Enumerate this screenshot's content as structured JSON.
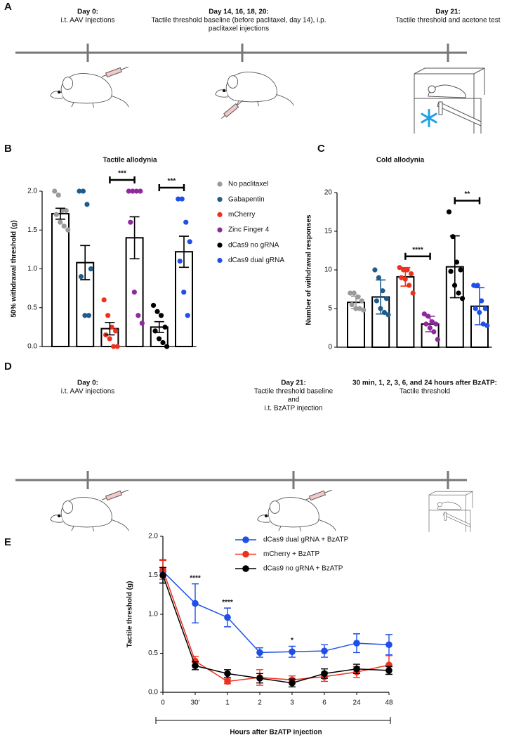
{
  "timeline_a": {
    "label": "A",
    "events": [
      {
        "title": "Day 0:",
        "lines": [
          "i.t. AAV Injections"
        ]
      },
      {
        "title": "Day 14, 16, 18, 20:",
        "lines": [
          "Tactile threshold baseline (before paclitaxel, day 14), i.p.",
          "paclitaxel injections"
        ]
      },
      {
        "title": "Day 21:",
        "lines": [
          "Tactile threshold and acetone test"
        ]
      }
    ]
  },
  "timeline_d": {
    "label": "D",
    "events": [
      {
        "title": "Day 0:",
        "lines": [
          "i.t. AAV injections"
        ]
      },
      {
        "title": "Day 21:",
        "lines": [
          "Tactile threshold baseline",
          "and",
          "i.t. BzATP injection"
        ]
      },
      {
        "title": "30 min, 1, 2, 3, 6, and 24 hours after BzATP:",
        "lines": [
          "Tactile threshold"
        ]
      }
    ]
  },
  "chart_data": [
    {
      "type": "bar",
      "panel_label": "B",
      "title": "Tactile allodynia",
      "y_label": "50% withdrawal threshold (g)",
      "ylim": [
        0,
        2
      ],
      "yticks": [
        {
          "value": 0,
          "label": "0.0"
        },
        {
          "value": 0.5,
          "label": "0.5"
        },
        {
          "value": 1,
          "label": "1.0"
        },
        {
          "value": 1.5,
          "label": "1.5"
        },
        {
          "value": 2,
          "label": "2.0"
        }
      ],
      "legend": "right",
      "errorbar_color": "#000000",
      "series": [
        {
          "name": "No paclitaxel",
          "color": "#9a9a9a",
          "values": [
            1.71
          ],
          "errors": [
            0.07
          ],
          "points": [
            2.0,
            1.95,
            1.75,
            1.75,
            1.7,
            1.6,
            1.55,
            1.5
          ]
        },
        {
          "name": "Gabapentin",
          "color": "#1f5c8c",
          "values": [
            1.08
          ],
          "errors": [
            0.22
          ],
          "points": [
            2.0,
            2.0,
            1.83,
            1.0,
            0.9,
            0.4,
            0.4
          ]
        },
        {
          "name": "mCherry",
          "color": "#f0301e",
          "values": [
            0.23
          ],
          "errors": [
            0.08
          ],
          "points": [
            0.6,
            0.4,
            0.25,
            0.2,
            0.15,
            0.1,
            0.0,
            0.0
          ]
        },
        {
          "name": "Zinc Finger 4",
          "color": "#8e2a9c",
          "values": [
            1.4
          ],
          "errors": [
            0.27
          ],
          "points": [
            2.0,
            2.0,
            2.0,
            2.0,
            1.6,
            0.7,
            0.4,
            0.3
          ]
        },
        {
          "name": "dCas9 no gRNA",
          "color": "#000000",
          "values": [
            0.25
          ],
          "errors": [
            0.07
          ],
          "points": [
            0.53,
            0.45,
            0.4,
            0.25,
            0.2,
            0.1,
            0.05,
            0.0
          ]
        },
        {
          "name": "dCas9 dual gRNA",
          "color": "#1f4fe8",
          "values": [
            1.22
          ],
          "errors": [
            0.2
          ],
          "points": [
            1.9,
            1.9,
            1.6,
            1.35,
            1.1,
            0.7,
            0.4
          ]
        }
      ],
      "comparisons": [
        {
          "label": "***",
          "groups": [
            2,
            3
          ]
        },
        {
          "label": "***",
          "groups": [
            4,
            5
          ]
        }
      ]
    },
    {
      "type": "bar",
      "panel_label": "C",
      "title": "Cold allodynia",
      "y_label": "Number of withdrawal responses",
      "ylim": [
        0,
        20
      ],
      "yticks": [
        0,
        5,
        10,
        15,
        20
      ],
      "legend": false,
      "series": [
        {
          "color": "#9a9a9a",
          "values": [
            5.8
          ],
          "errors": [
            0.8
          ],
          "points": [
            7,
            7,
            6.5,
            6,
            5.5,
            5,
            5,
            4.8
          ]
        },
        {
          "color": "#1f5c8c",
          "values": [
            6.5
          ],
          "errors": [
            2.2
          ],
          "points": [
            10,
            9,
            7.3,
            6.3,
            6,
            5,
            4.5,
            4.2
          ]
        },
        {
          "color": "#f0301e",
          "values": [
            9.1
          ],
          "errors": [
            1.2
          ],
          "points": [
            10.3,
            10,
            10,
            9.5,
            9,
            8.8,
            8,
            7
          ]
        },
        {
          "color": "#8e2a9c",
          "values": [
            3.0
          ],
          "errors": [
            1.0
          ],
          "points": [
            4.3,
            4,
            3.3,
            3,
            3,
            2.5,
            2,
            1
          ]
        },
        {
          "color": "#000000",
          "values": [
            10.4
          ],
          "errors": [
            4.0
          ],
          "points": [
            17.5,
            14.3,
            11,
            10,
            9.8,
            8,
            7,
            6.3
          ]
        },
        {
          "color": "#1f4fe8",
          "values": [
            5.3
          ],
          "errors": [
            2.4
          ],
          "points": [
            8,
            8,
            6,
            5,
            5,
            4.5,
            3,
            2.8
          ]
        }
      ],
      "comparisons": [
        {
          "label": "****",
          "groups": [
            2,
            3
          ]
        },
        {
          "label": "**",
          "groups": [
            4,
            5
          ]
        }
      ]
    },
    {
      "type": "line",
      "panel_label": "E",
      "x_label": "Hours after BzATP injection",
      "y_label": "Tactile threshold (g)",
      "categories": [
        "0",
        "30'",
        "1",
        "2",
        "3",
        "6",
        "24",
        "48"
      ],
      "ylim": [
        0,
        2
      ],
      "yticks": [
        {
          "value": 0,
          "label": "0.0"
        },
        {
          "value": 0.5,
          "label": "0.5"
        },
        {
          "value": 1,
          "label": "1.0"
        },
        {
          "value": 1.5,
          "label": "1.5"
        },
        {
          "value": 2,
          "label": "2.0"
        }
      ],
      "legend": "top",
      "series": [
        {
          "name": "dCas9 dual gRNA + BzATP",
          "color": "#1f4fe8",
          "values": [
            1.55,
            1.14,
            0.96,
            0.51,
            0.52,
            0.53,
            0.63,
            0.61
          ],
          "errors": [
            0.15,
            0.25,
            0.12,
            0.06,
            0.07,
            0.08,
            0.12,
            0.13
          ]
        },
        {
          "name": "mCherry + BzATP",
          "color": "#f0301e",
          "values": [
            1.57,
            0.4,
            0.14,
            0.19,
            0.16,
            0.2,
            0.26,
            0.35
          ],
          "errors": [
            0.12,
            0.06,
            0.03,
            0.1,
            0.05,
            0.06,
            0.07,
            0.12
          ]
        },
        {
          "name": "dCas9 no gRNA + BzATP",
          "color": "#000000",
          "values": [
            1.5,
            0.34,
            0.24,
            0.18,
            0.12,
            0.24,
            0.3,
            0.28
          ],
          "errors": [
            0.1,
            0.05,
            0.05,
            0.06,
            0.05,
            0.06,
            0.06,
            0.05
          ]
        }
      ],
      "annotations": [
        {
          "label": "****",
          "index": 1
        },
        {
          "label": "****",
          "index": 2
        },
        {
          "label": "*",
          "index": 4
        }
      ]
    }
  ]
}
